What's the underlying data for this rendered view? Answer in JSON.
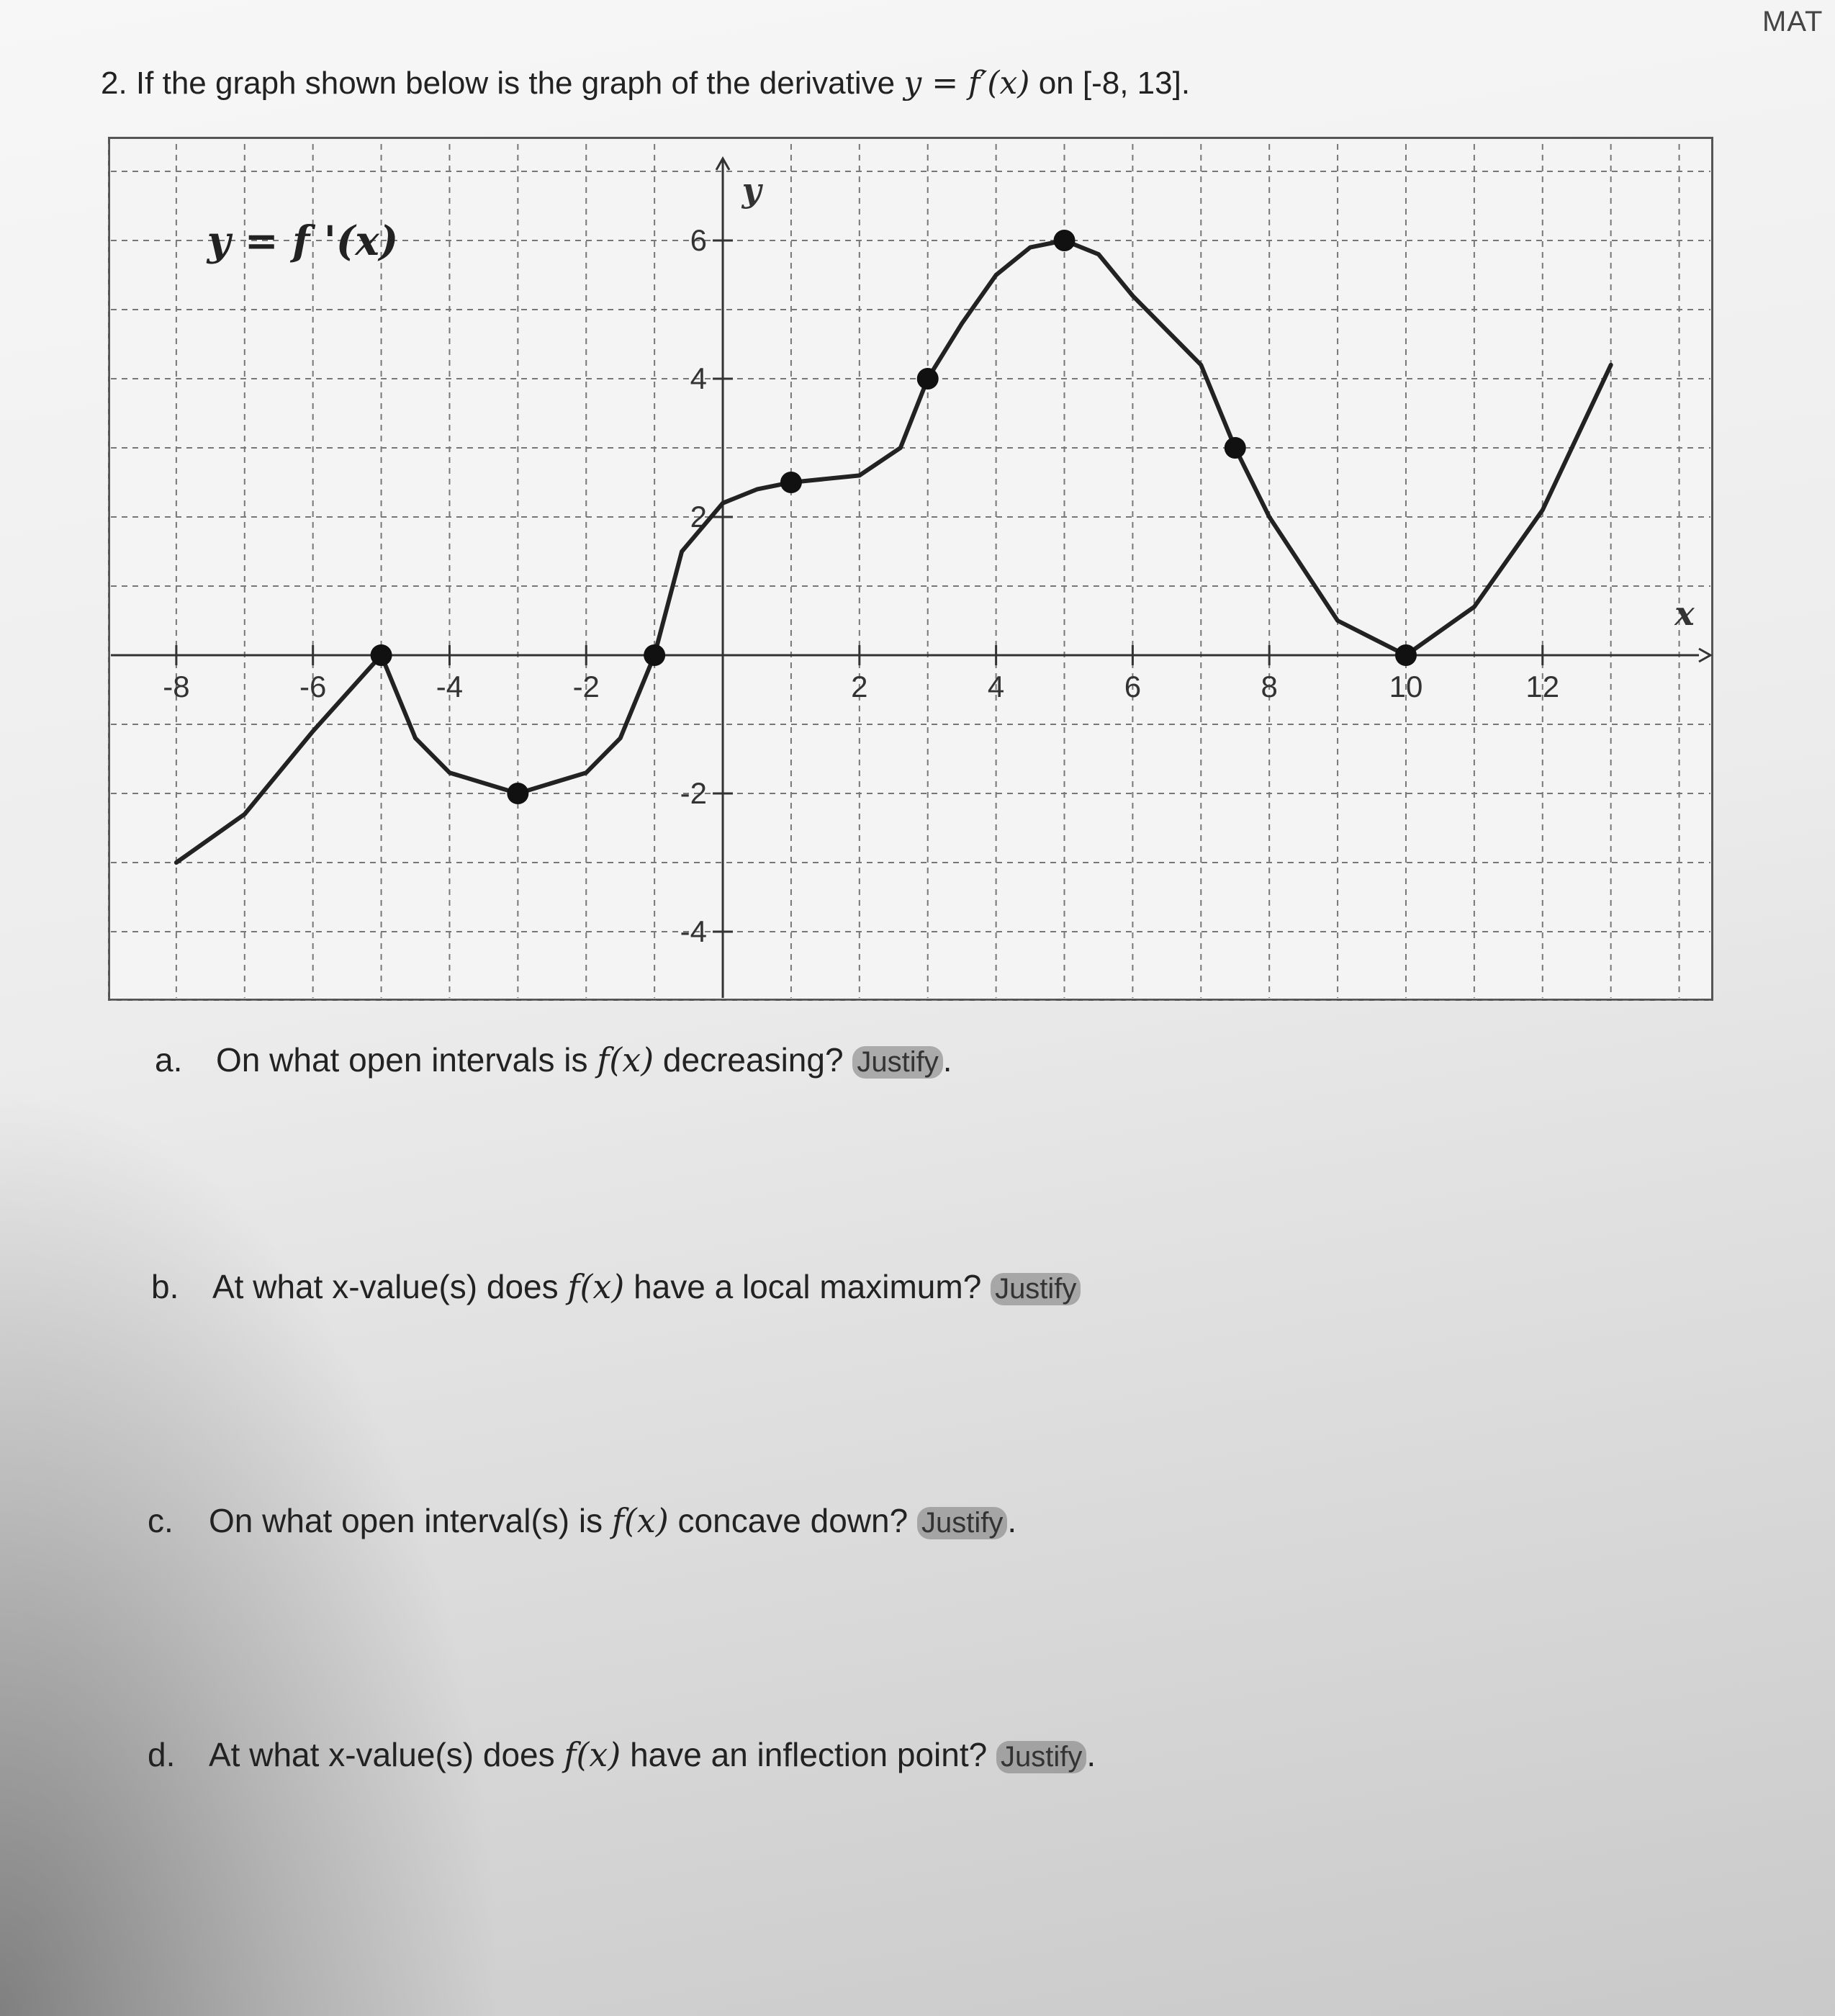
{
  "header_tag": "MAT",
  "problem": {
    "text_before": "2. If the graph shown below is the graph of the derivative ",
    "math": "y = f′(x)",
    "text_after": " on [-8, 13]."
  },
  "chart_data": {
    "type": "line",
    "title": "y = f '(x)",
    "xlabel": "x",
    "ylabel": "y",
    "xlim": [
      -9,
      14.5
    ],
    "ylim": [
      -5,
      7.5
    ],
    "xticks": [
      -8,
      -6,
      -4,
      -2,
      2,
      4,
      6,
      8,
      10,
      12
    ],
    "yticks": [
      -4,
      -2,
      2,
      4,
      6
    ],
    "grid": true,
    "series": [
      {
        "points": [
          [
            -8,
            -3
          ],
          [
            -7,
            -2.3
          ],
          [
            -6,
            -1.1
          ],
          [
            -5,
            0
          ],
          [
            -4.5,
            -1.2
          ],
          [
            -4,
            -1.7
          ],
          [
            -3,
            -2
          ],
          [
            -2,
            -1.7
          ],
          [
            -1.5,
            -1.2
          ],
          [
            -1,
            0
          ],
          [
            -0.6,
            1.5
          ],
          [
            0,
            2.2
          ],
          [
            0.5,
            2.4
          ],
          [
            1,
            2.5
          ],
          [
            2,
            2.6
          ],
          [
            2.6,
            3
          ],
          [
            3,
            4
          ],
          [
            3.5,
            4.8
          ],
          [
            4,
            5.5
          ],
          [
            4.5,
            5.9
          ],
          [
            5,
            6
          ],
          [
            5.5,
            5.8
          ],
          [
            6,
            5.2
          ],
          [
            7,
            4.2
          ],
          [
            7.5,
            3
          ],
          [
            8,
            2
          ],
          [
            9,
            0.5
          ],
          [
            10,
            0
          ],
          [
            11,
            0.7
          ],
          [
            12,
            2.1
          ],
          [
            13,
            4.2
          ]
        ]
      }
    ],
    "marked_points": [
      [
        -5,
        0
      ],
      [
        -3,
        -2
      ],
      [
        -1,
        0
      ],
      [
        1,
        2.5
      ],
      [
        3,
        4
      ],
      [
        5,
        6
      ],
      [
        7.5,
        3
      ],
      [
        10,
        0
      ]
    ]
  },
  "questions": [
    {
      "letter": "a.",
      "before": "On what open intervals is ",
      "math": "f(x)",
      "after": " decreasing? ",
      "justify": "Justify",
      "end": "."
    },
    {
      "letter": "b.",
      "before": "At what x-value(s) does ",
      "math": "f(x)",
      "after": " have a local maximum? ",
      "justify": "Justify",
      "end": ""
    },
    {
      "letter": "c.",
      "before": "On what open interval(s) is ",
      "math": "f(x)",
      "after": " concave down? ",
      "justify": "Justify",
      "end": "."
    },
    {
      "letter": "d.",
      "before": "At what x-value(s) does ",
      "math": "f(x)",
      "after": " have an inflection point? ",
      "justify": "Justify",
      "end": "."
    }
  ]
}
